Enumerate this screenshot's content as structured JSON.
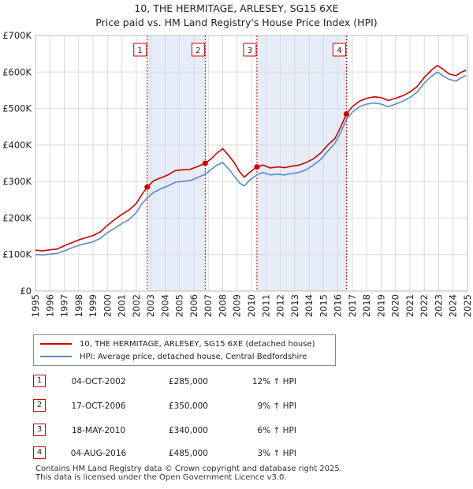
{
  "title_line1": "10, THE HERMITAGE, ARLESEY, SG15 6XE",
  "title_line2": "Price paid vs. HM Land Registry's House Price Index (HPI)",
  "colors": {
    "property": "#cc0000",
    "hpi": "#5b8bc9",
    "shade": "#e6ecf8"
  },
  "chart_data": {
    "type": "line",
    "ylim": [
      0,
      700000
    ],
    "xlim": [
      1995.0,
      2025.0
    ],
    "yticks": [
      {
        "value": 0,
        "label": "£0"
      },
      {
        "value": 100000,
        "label": "£100K"
      },
      {
        "value": 200000,
        "label": "£200K"
      },
      {
        "value": 300000,
        "label": "£300K"
      },
      {
        "value": 400000,
        "label": "£400K"
      },
      {
        "value": 500000,
        "label": "£500K"
      },
      {
        "value": 600000,
        "label": "£600K"
      },
      {
        "value": 700000,
        "label": "£700K"
      }
    ],
    "xticks": [
      1995,
      1996,
      1997,
      1998,
      1999,
      2000,
      2001,
      2002,
      2003,
      2004,
      2005,
      2006,
      2007,
      2008,
      2009,
      2010,
      2011,
      2012,
      2013,
      2014,
      2015,
      2016,
      2017,
      2018,
      2019,
      2020,
      2021,
      2022,
      2023,
      2024,
      2025
    ],
    "shaded_spans": [
      [
        2002.75,
        2006.79
      ],
      [
        2010.38,
        2016.59
      ]
    ],
    "series": [
      {
        "name": "10, THE HERMITAGE, ARLESEY, SG15 6XE (detached house)",
        "color": "#cc0000",
        "points": [
          [
            1995.0,
            112000
          ],
          [
            1995.5,
            110000
          ],
          [
            1996.0,
            113000
          ],
          [
            1996.5,
            115000
          ],
          [
            1997.0,
            124000
          ],
          [
            1997.5,
            132000
          ],
          [
            1998.0,
            140000
          ],
          [
            1998.5,
            146000
          ],
          [
            1999.0,
            152000
          ],
          [
            1999.5,
            162000
          ],
          [
            2000.0,
            180000
          ],
          [
            2000.5,
            196000
          ],
          [
            2001.0,
            210000
          ],
          [
            2001.5,
            222000
          ],
          [
            2002.0,
            240000
          ],
          [
            2002.4,
            265000
          ],
          [
            2002.76,
            285000
          ],
          [
            2003.2,
            302000
          ],
          [
            2003.7,
            310000
          ],
          [
            2004.2,
            318000
          ],
          [
            2004.7,
            330000
          ],
          [
            2005.2,
            332000
          ],
          [
            2005.7,
            333000
          ],
          [
            2006.2,
            340000
          ],
          [
            2006.79,
            350000
          ],
          [
            2007.2,
            362000
          ],
          [
            2007.6,
            378000
          ],
          [
            2008.0,
            390000
          ],
          [
            2008.4,
            372000
          ],
          [
            2008.8,
            352000
          ],
          [
            2009.2,
            325000
          ],
          [
            2009.5,
            312000
          ],
          [
            2009.9,
            326000
          ],
          [
            2010.38,
            340000
          ],
          [
            2010.8,
            345000
          ],
          [
            2011.3,
            337000
          ],
          [
            2011.8,
            340000
          ],
          [
            2012.3,
            338000
          ],
          [
            2012.8,
            342000
          ],
          [
            2013.3,
            345000
          ],
          [
            2013.8,
            352000
          ],
          [
            2014.3,
            362000
          ],
          [
            2014.8,
            378000
          ],
          [
            2015.3,
            400000
          ],
          [
            2015.8,
            418000
          ],
          [
            2016.2,
            450000
          ],
          [
            2016.59,
            485000
          ],
          [
            2017.0,
            505000
          ],
          [
            2017.5,
            520000
          ],
          [
            2018.0,
            528000
          ],
          [
            2018.5,
            532000
          ],
          [
            2019.0,
            530000
          ],
          [
            2019.5,
            522000
          ],
          [
            2020.0,
            528000
          ],
          [
            2020.5,
            535000
          ],
          [
            2021.0,
            545000
          ],
          [
            2021.5,
            560000
          ],
          [
            2022.0,
            585000
          ],
          [
            2022.5,
            605000
          ],
          [
            2022.9,
            618000
          ],
          [
            2023.3,
            608000
          ],
          [
            2023.7,
            595000
          ],
          [
            2024.2,
            590000
          ],
          [
            2024.6,
            600000
          ],
          [
            2024.9,
            605000
          ]
        ]
      },
      {
        "name": "HPI: Average price, detached house, Central Bedfordshire",
        "color": "#5b8bc9",
        "points": [
          [
            1995.0,
            100000
          ],
          [
            1995.5,
            99000
          ],
          [
            1996.0,
            101000
          ],
          [
            1996.5,
            103000
          ],
          [
            1997.0,
            110000
          ],
          [
            1997.5,
            118000
          ],
          [
            1998.0,
            125000
          ],
          [
            1998.5,
            130000
          ],
          [
            1999.0,
            135000
          ],
          [
            1999.5,
            144000
          ],
          [
            2000.0,
            160000
          ],
          [
            2000.5,
            172000
          ],
          [
            2001.0,
            185000
          ],
          [
            2001.5,
            196000
          ],
          [
            2002.0,
            215000
          ],
          [
            2002.4,
            240000
          ],
          [
            2002.76,
            255000
          ],
          [
            2003.2,
            270000
          ],
          [
            2003.7,
            280000
          ],
          [
            2004.2,
            288000
          ],
          [
            2004.7,
            298000
          ],
          [
            2005.2,
            300000
          ],
          [
            2005.7,
            302000
          ],
          [
            2006.2,
            310000
          ],
          [
            2006.79,
            320000
          ],
          [
            2007.2,
            333000
          ],
          [
            2007.6,
            345000
          ],
          [
            2008.0,
            352000
          ],
          [
            2008.4,
            335000
          ],
          [
            2008.8,
            315000
          ],
          [
            2009.2,
            295000
          ],
          [
            2009.5,
            288000
          ],
          [
            2009.9,
            305000
          ],
          [
            2010.38,
            318000
          ],
          [
            2010.8,
            325000
          ],
          [
            2011.3,
            318000
          ],
          [
            2011.8,
            320000
          ],
          [
            2012.3,
            318000
          ],
          [
            2012.8,
            322000
          ],
          [
            2013.3,
            325000
          ],
          [
            2013.8,
            332000
          ],
          [
            2014.3,
            345000
          ],
          [
            2014.8,
            360000
          ],
          [
            2015.3,
            383000
          ],
          [
            2015.8,
            405000
          ],
          [
            2016.2,
            435000
          ],
          [
            2016.59,
            470000
          ],
          [
            2017.0,
            490000
          ],
          [
            2017.5,
            505000
          ],
          [
            2018.0,
            512000
          ],
          [
            2018.5,
            515000
          ],
          [
            2019.0,
            512000
          ],
          [
            2019.5,
            505000
          ],
          [
            2020.0,
            512000
          ],
          [
            2020.5,
            520000
          ],
          [
            2021.0,
            530000
          ],
          [
            2021.5,
            545000
          ],
          [
            2022.0,
            570000
          ],
          [
            2022.5,
            588000
          ],
          [
            2022.9,
            600000
          ],
          [
            2023.3,
            590000
          ],
          [
            2023.7,
            580000
          ],
          [
            2024.2,
            575000
          ],
          [
            2024.6,
            585000
          ],
          [
            2024.9,
            590000
          ]
        ]
      }
    ],
    "markers": [
      {
        "label": "1",
        "x": 2002.76,
        "value": 285000
      },
      {
        "label": "2",
        "x": 2006.79,
        "value": 350000
      },
      {
        "label": "3",
        "x": 2010.38,
        "value": 340000
      },
      {
        "label": "4",
        "x": 2016.59,
        "value": 485000
      }
    ]
  },
  "legend": {
    "property": "10, THE HERMITAGE, ARLESEY, SG15 6XE (detached house)",
    "hpi": "HPI: Average price, detached house, Central Bedfordshire"
  },
  "transactions": [
    {
      "num": "1",
      "date": "04-OCT-2002",
      "price": "£285,000",
      "hpi": "12% ↑ HPI"
    },
    {
      "num": "2",
      "date": "17-OCT-2006",
      "price": "£350,000",
      "hpi": "9% ↑ HPI"
    },
    {
      "num": "3",
      "date": "18-MAY-2010",
      "price": "£340,000",
      "hpi": "6% ↑ HPI"
    },
    {
      "num": "4",
      "date": "04-AUG-2016",
      "price": "£485,000",
      "hpi": "3% ↑ HPI"
    }
  ],
  "footer_line1": "Contains HM Land Registry data © Crown copyright and database right 2025.",
  "footer_line2": "This data is licensed under the Open Government Licence v3.0."
}
